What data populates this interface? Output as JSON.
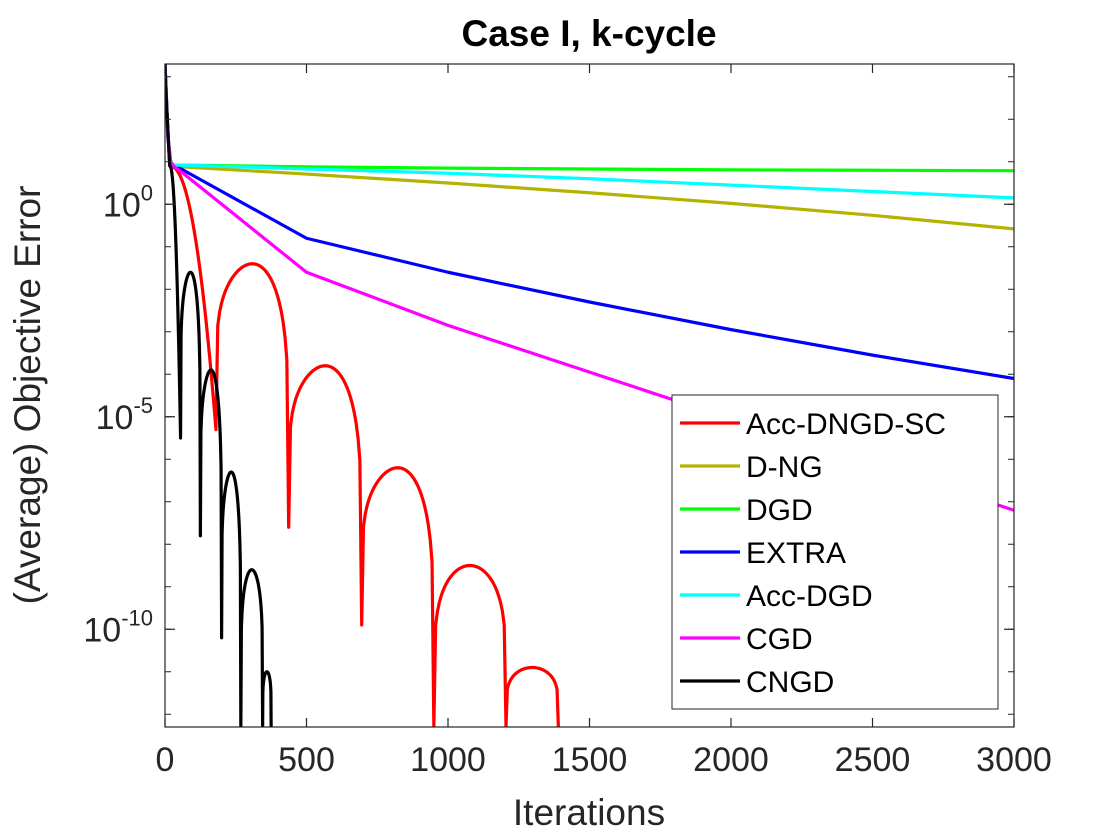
{
  "chart_data": {
    "type": "line",
    "title": "Case I, k-cycle",
    "xlabel": "Iterations",
    "ylabel": "(Average) Objective Error",
    "xlim": [
      0,
      3000
    ],
    "ylim_log10": [
      -12.3,
      3.3
    ],
    "yscale": "log",
    "grid": false,
    "legend_position": "bottom-right",
    "xticks": [
      {
        "value": 0,
        "label": "0"
      },
      {
        "value": 500,
        "label": "500"
      },
      {
        "value": 1000,
        "label": "1000"
      },
      {
        "value": 1500,
        "label": "1500"
      },
      {
        "value": 2000,
        "label": "2000"
      },
      {
        "value": 2500,
        "label": "2500"
      },
      {
        "value": 3000,
        "label": "3000"
      }
    ],
    "yticks": [
      {
        "exp": 0,
        "base": "10",
        "sup": "0"
      },
      {
        "exp": -5,
        "base": "10",
        "sup": "-5"
      },
      {
        "exp": -10,
        "base": "10",
        "sup": "-10"
      }
    ],
    "series": [
      {
        "name": "Acc-DNGD-SC",
        "color": "#ff0000",
        "kind": "oscillating",
        "start_log10": 3.3,
        "initial_log10": 0.9,
        "zeros": [
          180,
          437,
          695,
          950,
          1205,
          1390
        ],
        "peaks_log10": [
          -1.4,
          -3.8,
          -6.2,
          -8.5,
          -10.9
        ],
        "dip_depths_log10": [
          -5.3,
          -7.6,
          -9.9,
          -12.3,
          -12.3,
          -12.3
        ],
        "end_x": 1395
      },
      {
        "name": "D-NG",
        "color": "#b3b300",
        "kind": "decay",
        "x": [
          0,
          5,
          10,
          20,
          30,
          60,
          500,
          1000,
          1500,
          2000,
          2500,
          3000
        ],
        "y_log10": [
          3.3,
          2.5,
          1.6,
          1.0,
          0.9,
          0.88,
          0.71,
          0.5,
          0.27,
          0.02,
          -0.26,
          -0.58
        ]
      },
      {
        "name": "DGD",
        "color": "#00ff00",
        "kind": "decay",
        "x": [
          0,
          5,
          10,
          20,
          30,
          60,
          500,
          1000,
          1500,
          2000,
          2500,
          3000
        ],
        "y_log10": [
          3.3,
          2.5,
          1.6,
          1.0,
          0.92,
          0.92,
          0.88,
          0.85,
          0.83,
          0.81,
          0.8,
          0.79
        ]
      },
      {
        "name": "EXTRA",
        "color": "#0000ff",
        "kind": "decay",
        "x": [
          0,
          5,
          10,
          20,
          30,
          60,
          500,
          1000,
          1500,
          2000,
          2500,
          3000
        ],
        "y_log10": [
          3.3,
          2.5,
          1.6,
          1.0,
          0.9,
          0.82,
          -0.8,
          -1.6,
          -2.3,
          -2.95,
          -3.55,
          -4.1
        ]
      },
      {
        "name": "Acc-DGD",
        "color": "#00ffff",
        "kind": "decay",
        "x": [
          0,
          5,
          10,
          20,
          30,
          60,
          500,
          1000,
          1500,
          2000,
          2500,
          3000
        ],
        "y_log10": [
          3.3,
          2.5,
          1.6,
          1.0,
          0.92,
          0.92,
          0.83,
          0.73,
          0.6,
          0.45,
          0.3,
          0.15
        ]
      },
      {
        "name": "CGD",
        "color": "#ff00ff",
        "kind": "decay",
        "x": [
          0,
          5,
          10,
          20,
          30,
          60,
          500,
          1000,
          1500,
          2000,
          2500,
          3000
        ],
        "y_log10": [
          3.3,
          2.5,
          1.6,
          1.0,
          0.9,
          0.75,
          -1.6,
          -2.85,
          -3.95,
          -5.05,
          -6.1,
          -7.2
        ]
      },
      {
        "name": "CNGD",
        "color": "#000000",
        "kind": "oscillating",
        "start_log10": 3.3,
        "initial_log10": 0.9,
        "zeros": [
          55,
          125,
          200,
          268,
          345,
          375
        ],
        "peaks_log10": [
          -1.6,
          -3.9,
          -6.3,
          -8.6,
          -11.0
        ],
        "dip_depths_log10": [
          -5.5,
          -7.8,
          -10.2,
          -12.3,
          -12.3,
          -12.3
        ],
        "end_x": 380
      }
    ]
  }
}
